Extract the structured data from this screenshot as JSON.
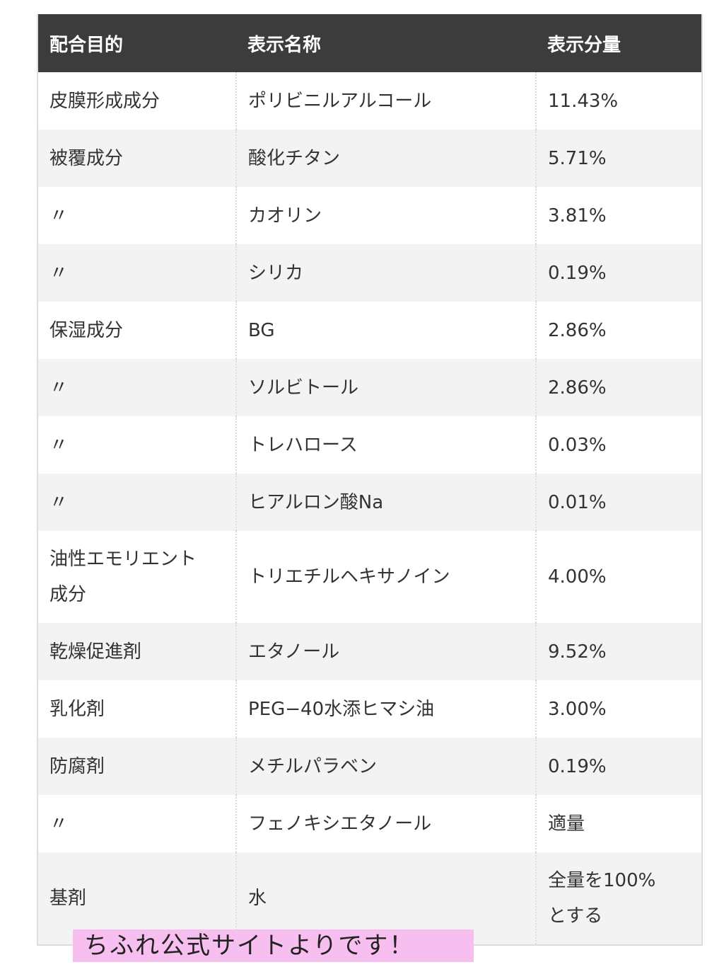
{
  "table": {
    "header": [
      "配合目的",
      "表示名称",
      "表示分量"
    ],
    "rows": [
      [
        "皮膜形成成分",
        "ポリビニルアルコール",
        "11.43%"
      ],
      [
        "被覆成分",
        "酸化チタン",
        "5.71%"
      ],
      [
        "〃",
        "カオリン",
        "3.81%"
      ],
      [
        "〃",
        "シリカ",
        "0.19%"
      ],
      [
        "保湿成分",
        "BG",
        "2.86%"
      ],
      [
        "〃",
        "ソルビトール",
        "2.86%"
      ],
      [
        "〃",
        "トレハロース",
        "0.03%"
      ],
      [
        "〃",
        "ヒアルロン酸Na",
        "0.01%"
      ],
      [
        "油性エモリエント成分",
        "トリエチルヘキサノイン",
        "4.00%"
      ],
      [
        "乾燥促進剤",
        "エタノール",
        "9.52%"
      ],
      [
        "乳化剤",
        "PEG−40水添ヒマシ油",
        "3.00%"
      ],
      [
        "防腐剤",
        "メチルパラベン",
        "0.19%"
      ],
      [
        "〃",
        "フェノキシエタノール",
        "適量"
      ],
      [
        "基剤",
        "水",
        "全量を100%とする"
      ]
    ]
  },
  "annotation": "ちふれ公式サイトよりです！"
}
